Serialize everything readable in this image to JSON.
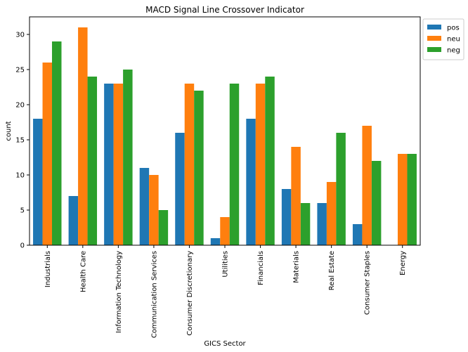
{
  "chart_data": {
    "type": "bar",
    "title": "MACD Signal Line Crossover Indicator",
    "xlabel": "GICS Sector",
    "ylabel": "count",
    "ylim": [
      0,
      32.5
    ],
    "yticks": [
      0,
      5,
      10,
      15,
      20,
      25,
      30
    ],
    "grid": false,
    "legend_position": "top-right outside",
    "categories": [
      "Industrials",
      "Health Care",
      "Information Technology",
      "Communication Services",
      "Consumer Discretionary",
      "Utilities",
      "Financials",
      "Materials",
      "Real Estate",
      "Consumer Staples",
      "Energy"
    ],
    "series": [
      {
        "name": "pos",
        "color": "#1f77b4",
        "values": [
          18,
          7,
          23,
          11,
          16,
          1,
          18,
          8,
          6,
          3,
          0
        ]
      },
      {
        "name": "neu",
        "color": "#ff7f0e",
        "values": [
          26,
          31,
          23,
          10,
          23,
          4,
          23,
          14,
          9,
          17,
          13
        ]
      },
      {
        "name": "neg",
        "color": "#2ca02c",
        "values": [
          29,
          24,
          25,
          5,
          22,
          23,
          24,
          6,
          16,
          12,
          13
        ]
      }
    ]
  }
}
